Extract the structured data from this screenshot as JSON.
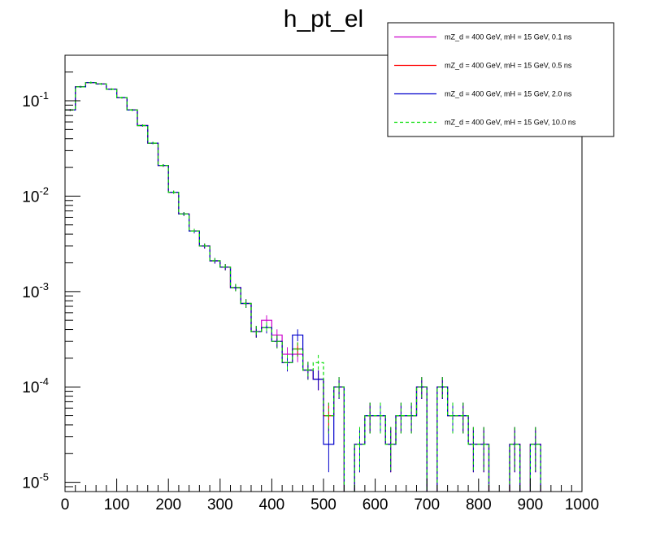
{
  "chart_data": {
    "type": "line",
    "title": "h_pt_el",
    "xlabel": "",
    "ylabel": "",
    "xlim": [
      0,
      1000
    ],
    "ylim": [
      8e-06,
      0.3
    ],
    "yscale": "log",
    "bin_width": 20,
    "x_ticks": [
      0,
      100,
      200,
      300,
      400,
      500,
      600,
      700,
      800,
      900,
      1000
    ],
    "y_ticks": [
      {
        "value": 0.1,
        "base": "10",
        "exp": "-1"
      },
      {
        "value": 0.01,
        "base": "10",
        "exp": "-2"
      },
      {
        "value": 0.001,
        "base": "10",
        "exp": "-3"
      },
      {
        "value": 0.0001,
        "base": "10",
        "exp": "-4"
      },
      {
        "value": 1e-05,
        "base": "10",
        "exp": "-5"
      }
    ],
    "legend_position": "top-right",
    "series": [
      {
        "name": "mZ_d = 400 GeV, mH = 15 GeV, 0.1 ns",
        "color": "#cc00cc",
        "dashed": false,
        "values": [
          0.08,
          0.14,
          0.155,
          0.15,
          0.132,
          0.108,
          0.08,
          0.055,
          0.036,
          0.021,
          0.011,
          0.0065,
          0.0043,
          0.003,
          0.0021,
          0.0018,
          0.0011,
          0.00075,
          0.00038,
          0.0005,
          0.00035,
          0.00022,
          0.00022,
          0.00015,
          0.00012,
          5e-05,
          0.0001,
          0,
          2.5e-05,
          5e-05,
          5e-05,
          2.5e-05,
          5e-05,
          5e-05,
          0.0001,
          0,
          0.0001,
          5e-05,
          5e-05,
          2.5e-05,
          2.5e-05,
          0,
          0,
          2.5e-05,
          0,
          2.5e-05,
          0,
          0,
          0,
          0
        ]
      },
      {
        "name": "mZ_d = 400 GeV, mH = 15 GeV, 0.5 ns",
        "color": "#ff0000",
        "dashed": false,
        "values": [
          0.08,
          0.14,
          0.155,
          0.15,
          0.132,
          0.108,
          0.08,
          0.055,
          0.036,
          0.021,
          0.011,
          0.0065,
          0.0043,
          0.003,
          0.0021,
          0.0018,
          0.0011,
          0.00075,
          0.00038,
          0.00042,
          0.0003,
          0.00018,
          0.00025,
          0.00015,
          0.00012,
          5e-05,
          0.0001,
          0,
          2.5e-05,
          5e-05,
          5e-05,
          2.5e-05,
          5e-05,
          5e-05,
          0.0001,
          0,
          0.0001,
          5e-05,
          5e-05,
          2.5e-05,
          2.5e-05,
          0,
          0,
          2.5e-05,
          0,
          2.5e-05,
          0,
          0,
          0,
          0
        ]
      },
      {
        "name": "mZ_d = 400 GeV, mH = 15 GeV, 2.0 ns",
        "color": "#0000cc",
        "dashed": false,
        "values": [
          0.08,
          0.14,
          0.155,
          0.15,
          0.132,
          0.108,
          0.08,
          0.055,
          0.036,
          0.021,
          0.011,
          0.0065,
          0.0043,
          0.003,
          0.0021,
          0.0018,
          0.0011,
          0.00075,
          0.00038,
          0.00042,
          0.0003,
          0.00018,
          0.00035,
          0.00015,
          0.00012,
          2.5e-05,
          0.0001,
          0,
          2.5e-05,
          5e-05,
          5e-05,
          2.5e-05,
          5e-05,
          5e-05,
          0.0001,
          0,
          0.0001,
          5e-05,
          5e-05,
          2.5e-05,
          2.5e-05,
          0,
          0,
          2.5e-05,
          0,
          2.5e-05,
          0,
          0,
          0,
          0
        ]
      },
      {
        "name": "mZ_d = 400 GeV, mH = 15 GeV, 10.0 ns",
        "color": "#00dd00",
        "dashed": true,
        "values": [
          0.08,
          0.14,
          0.155,
          0.15,
          0.132,
          0.108,
          0.08,
          0.055,
          0.036,
          0.021,
          0.011,
          0.0065,
          0.0043,
          0.003,
          0.0021,
          0.0018,
          0.0011,
          0.00075,
          0.00038,
          0.00042,
          0.0003,
          0.00018,
          0.00025,
          0.00015,
          0.00018,
          5e-05,
          0.0001,
          0,
          2.5e-05,
          5e-05,
          5e-05,
          2.5e-05,
          5e-05,
          5e-05,
          0.0001,
          0,
          0.0001,
          5e-05,
          5e-05,
          2.5e-05,
          2.5e-05,
          0,
          0,
          2.5e-05,
          0,
          2.5e-05,
          0,
          0,
          0,
          0
        ]
      }
    ]
  }
}
